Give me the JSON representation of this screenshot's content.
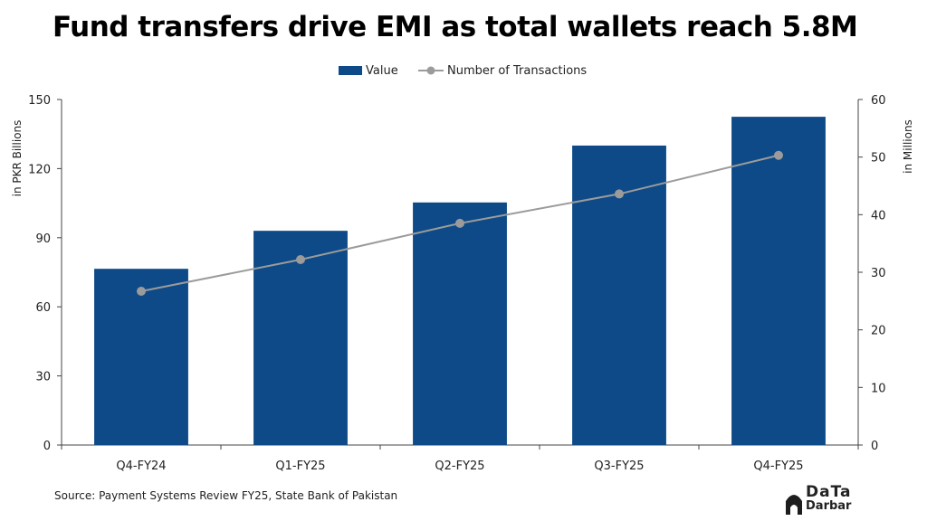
{
  "title": "Fund transfers drive EMI as total wallets reach 5.8M",
  "source": "Source: Payment Systems Review FY25, State Bank of Pakistan",
  "logo": {
    "line1": "DaTa",
    "line2": "Darbar"
  },
  "colors": {
    "bar": "#0d4a87",
    "line": "#9b9b9b",
    "axis": "#444444",
    "text": "#222222"
  },
  "chart_data": {
    "type": "bar",
    "categories": [
      "Q4-FY24",
      "Q1-FY25",
      "Q2-FY25",
      "Q3-FY25",
      "Q4-FY25"
    ],
    "series": [
      {
        "name": "Value",
        "type": "bar",
        "axis": "left",
        "values": [
          76.5,
          93,
          105.3,
          130,
          142.5
        ]
      },
      {
        "name": "Number of Transactions",
        "type": "line",
        "axis": "right",
        "values": [
          26.7,
          32.2,
          38.5,
          43.6,
          50.3
        ]
      }
    ],
    "ylabel": "in PKR Billions",
    "ylim": [
      0,
      150
    ],
    "yticks": [
      0,
      30,
      60,
      90,
      120,
      150
    ],
    "y2label": "in Millions",
    "y2lim": [
      0,
      60
    ],
    "y2ticks": [
      0,
      10,
      20,
      30,
      40,
      50,
      60
    ],
    "legend": "top-center",
    "grid": false
  }
}
